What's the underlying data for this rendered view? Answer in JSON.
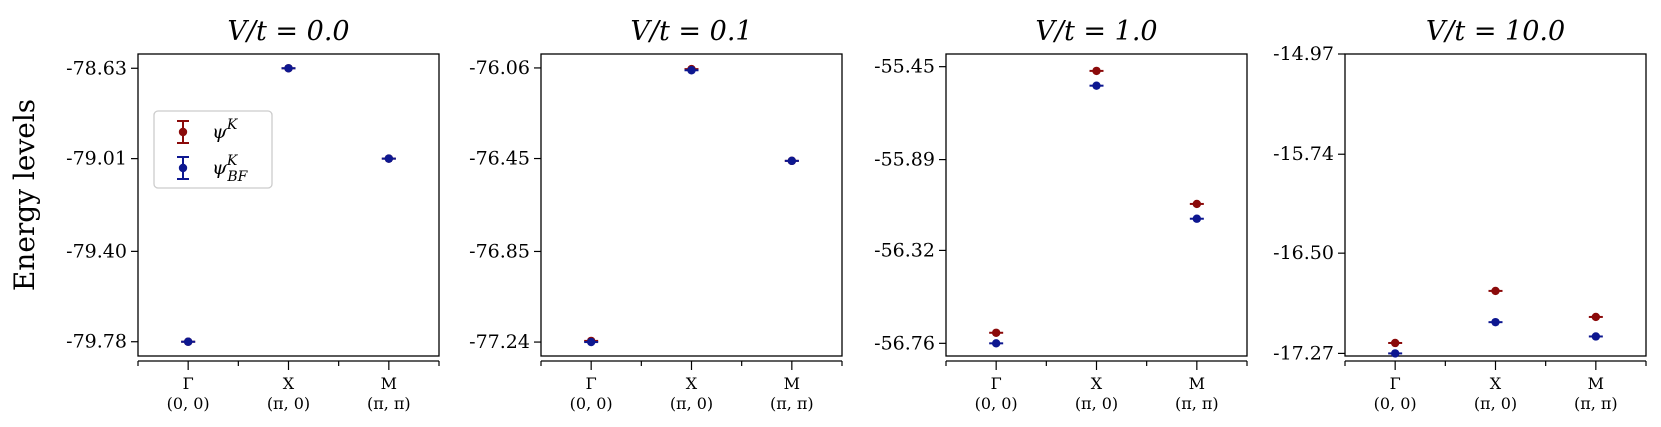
{
  "figure": {
    "ylabel": "Energy levels",
    "colors": {
      "psiK": "#8b0a0a",
      "psiBF": "#0d1790"
    }
  },
  "chart_data": [
    {
      "type": "scatter",
      "title": "V/t = 0.0",
      "categories": [
        "Γ",
        "X",
        "M"
      ],
      "category_sublabels": [
        "(0, 0)",
        "(π, 0)",
        "(π, π)"
      ],
      "yticks": [
        "-78.63",
        "-79.01",
        "-79.40",
        "-79.78"
      ],
      "ylim": [
        -79.84,
        -78.57
      ],
      "grid": false,
      "legend": {
        "placement": "upper-left",
        "entries": [
          "ψ^K",
          "ψ_BF^K"
        ]
      },
      "series": [
        {
          "name": "ψ^K",
          "color": "#8b0a0a",
          "values": [
            -79.78,
            -78.63,
            -79.01
          ],
          "errors": [
            0.004,
            0.004,
            0.004
          ]
        },
        {
          "name": "ψ_BF^K",
          "color": "#0d1790",
          "values": [
            -79.78,
            -78.63,
            -79.01
          ],
          "errors": [
            0.004,
            0.004,
            0.004
          ]
        }
      ]
    },
    {
      "type": "scatter",
      "title": "V/t = 0.1",
      "categories": [
        "Γ",
        "X",
        "M"
      ],
      "category_sublabels": [
        "(0, 0)",
        "(π, 0)",
        "(π, π)"
      ],
      "yticks": [
        "-76.06",
        "-76.45",
        "-76.85",
        "-77.24"
      ],
      "ylim": [
        -77.3,
        -76.0
      ],
      "grid": false,
      "series": [
        {
          "name": "ψ^K",
          "color": "#8b0a0a",
          "values": [
            -77.235,
            -76.065,
            -76.46
          ],
          "errors": [
            0.004,
            0.004,
            0.004
          ]
        },
        {
          "name": "ψ_BF^K",
          "color": "#0d1790",
          "values": [
            -77.24,
            -76.07,
            -76.46
          ],
          "errors": [
            0.004,
            0.004,
            0.004
          ]
        }
      ]
    },
    {
      "type": "scatter",
      "title": "V/t = 1.0",
      "categories": [
        "Γ",
        "X",
        "M"
      ],
      "category_sublabels": [
        "(0, 0)",
        "(π, 0)",
        "(π, π)"
      ],
      "yticks": [
        "-55.45",
        "-55.89",
        "-56.32",
        "-56.76"
      ],
      "ylim": [
        -56.82,
        -55.39
      ],
      "grid": false,
      "series": [
        {
          "name": "ψ^K",
          "color": "#8b0a0a",
          "values": [
            -56.71,
            -55.47,
            -56.1
          ],
          "errors": [
            0.008,
            0.008,
            0.008
          ]
        },
        {
          "name": "ψ_BF^K",
          "color": "#0d1790",
          "values": [
            -56.76,
            -55.54,
            -56.17
          ],
          "errors": [
            0.008,
            0.008,
            0.008
          ]
        }
      ]
    },
    {
      "type": "scatter",
      "title": "V/t = 10.0",
      "categories": [
        "Γ",
        "X",
        "M"
      ],
      "category_sublabels": [
        "(0, 0)",
        "(π, 0)",
        "(π, π)"
      ],
      "yticks": [
        "-14.97",
        "-15.74",
        "-16.50",
        "-17.27"
      ],
      "ylim": [
        -17.29,
        -14.97
      ],
      "grid": false,
      "series": [
        {
          "name": "ψ^K",
          "color": "#8b0a0a",
          "values": [
            -17.19,
            -16.79,
            -16.99
          ],
          "errors": [
            0.025,
            0.025,
            0.025
          ]
        },
        {
          "name": "ψ_BF^K",
          "color": "#0d1790",
          "values": [
            -17.27,
            -17.03,
            -17.14
          ],
          "errors": [
            0.025,
            0.025,
            0.025
          ]
        }
      ]
    }
  ]
}
